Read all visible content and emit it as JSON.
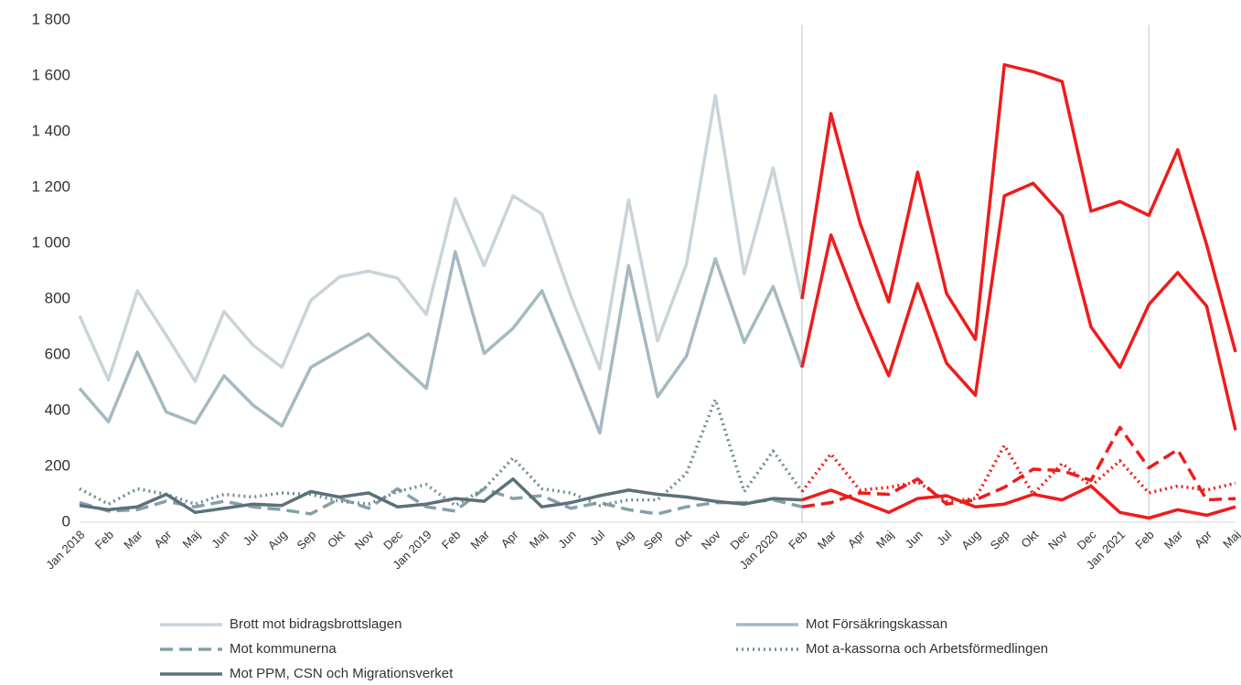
{
  "chart_data": {
    "type": "line",
    "categories": [
      "Jan 2018",
      "Feb",
      "Mar",
      "Apr",
      "Maj",
      "Jun",
      "Jul",
      "Aug",
      "Sep",
      "Okt",
      "Nov",
      "Dec",
      "Jan 2019",
      "Feb",
      "Mar",
      "Apr",
      "Maj",
      "Jun",
      "Jul",
      "Aug",
      "Sep",
      "Okt",
      "Nov",
      "Dec",
      "Jan 2020",
      "Feb",
      "Mar",
      "Apr",
      "Maj",
      "Jun",
      "Jul",
      "Aug",
      "Sep",
      "Okt",
      "Nov",
      "Dec",
      "Jan 2021",
      "Feb",
      "Mar",
      "Apr",
      "Maj"
    ],
    "series": [
      {
        "name": "Brott mot bidragsbrottslagen",
        "color": "#c9d4d9",
        "dash": "solid",
        "values": [
          740,
          510,
          830,
          670,
          505,
          755,
          635,
          555,
          795,
          880,
          900,
          875,
          745,
          1160,
          920,
          1170,
          1105,
          810,
          550,
          1155,
          650,
          925,
          1530,
          890,
          1270,
          800,
          1465,
          1075,
          790,
          1255,
          820,
          655,
          1640,
          1615,
          1580,
          1115,
          1150,
          1100,
          1335,
          995,
          610
        ]
      },
      {
        "name": "Mot Försäkringskassan",
        "color": "#a5b9c2",
        "dash": "solid",
        "values": [
          480,
          360,
          610,
          395,
          355,
          525,
          420,
          345,
          555,
          615,
          675,
          575,
          480,
          970,
          605,
          695,
          830,
          580,
          320,
          920,
          450,
          595,
          945,
          645,
          845,
          555,
          1030,
          760,
          525,
          855,
          570,
          455,
          1170,
          1215,
          1100,
          700,
          555,
          780,
          895,
          775,
          330
        ]
      },
      {
        "name": "Mot kommunerna",
        "color": "#84a0aa",
        "dash": "dashed",
        "values": [
          70,
          40,
          45,
          75,
          55,
          75,
          55,
          45,
          30,
          85,
          50,
          120,
          55,
          40,
          120,
          85,
          95,
          50,
          70,
          45,
          30,
          55,
          70,
          70,
          80,
          55,
          70,
          105,
          100,
          155,
          65,
          80,
          125,
          190,
          185,
          150,
          340,
          195,
          260,
          80,
          85
        ]
      },
      {
        "name": "Mot a-kassorna och Arbetsförmedlingen",
        "color": "#6f8e98",
        "dash": "dotted",
        "values": [
          120,
          65,
          120,
          100,
          65,
          100,
          90,
          105,
          100,
          75,
          65,
          110,
          135,
          60,
          120,
          230,
          120,
          105,
          60,
          80,
          80,
          175,
          440,
          110,
          255,
          110,
          245,
          115,
          125,
          145,
          75,
          85,
          275,
          100,
          210,
          130,
          220,
          105,
          130,
          115,
          140
        ]
      },
      {
        "name": "Mot PPM, CSN och Migrationsverket",
        "color": "#5b717a",
        "dash": "solid",
        "values": [
          60,
          45,
          55,
          100,
          35,
          50,
          65,
          60,
          110,
          90,
          105,
          55,
          65,
          85,
          75,
          155,
          55,
          70,
          95,
          115,
          100,
          90,
          75,
          65,
          85,
          80,
          115,
          75,
          35,
          85,
          95,
          55,
          65,
          100,
          80,
          130,
          35,
          15,
          45,
          25,
          55
        ]
      }
    ],
    "highlight_color": "#ee1c1c",
    "highlight_from_index": 25,
    "vlines": [
      25,
      37
    ],
    "vline_color": "#b6c6ce",
    "ylim": [
      0,
      1800
    ],
    "yticks": [
      0,
      200,
      400,
      600,
      800,
      {
        "value": 1000,
        "label": "1 000"
      },
      {
        "value": 1200,
        "label": "1 200"
      },
      {
        "value": 1400,
        "label": "1 400"
      },
      {
        "value": 1600,
        "label": "1 600"
      },
      {
        "value": 1800,
        "label": "1 800"
      }
    ],
    "grid": false,
    "legend": "bottom"
  }
}
